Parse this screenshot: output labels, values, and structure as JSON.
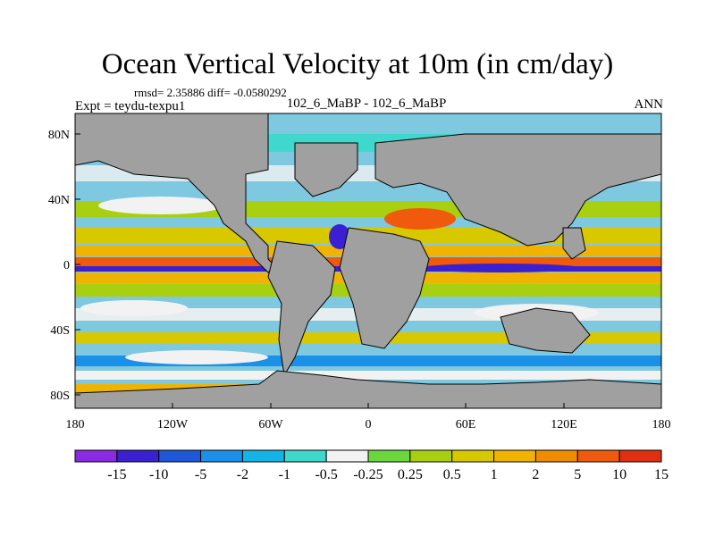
{
  "header": {
    "title": "Ocean Vertical Velocity at 10m (in cm/day)",
    "stats": "rmsd= 2.35886 diff= -0.0580292",
    "experiment": "Expt = teydu-texpu1",
    "comparison": "102_6_MaBP - 102_6_MaBP",
    "season": "ANN"
  },
  "map": {
    "x_ticks": [
      "180",
      "120W",
      "60W",
      "0",
      "60E",
      "120E",
      "180"
    ],
    "y_ticks": [
      "80N",
      "40N",
      "0",
      "40S",
      "80S"
    ],
    "land_color": "#a0a0a0",
    "ocean_background": "#7ec8e0"
  },
  "colorbar": {
    "labels": [
      "-15",
      "-10",
      "-5",
      "-2",
      "-1",
      "-0.5",
      "-0.25",
      "0.25",
      "0.5",
      "1",
      "2",
      "5",
      "10",
      "15"
    ],
    "colors": [
      "#8a2be2",
      "#3a20d0",
      "#1e58d8",
      "#1a90e8",
      "#14b4e6",
      "#40d8cc",
      "#f2f2f2",
      "#6ad83c",
      "#a8d010",
      "#d8c800",
      "#f0b400",
      "#f08c00",
      "#f05a0c",
      "#e03010"
    ]
  }
}
